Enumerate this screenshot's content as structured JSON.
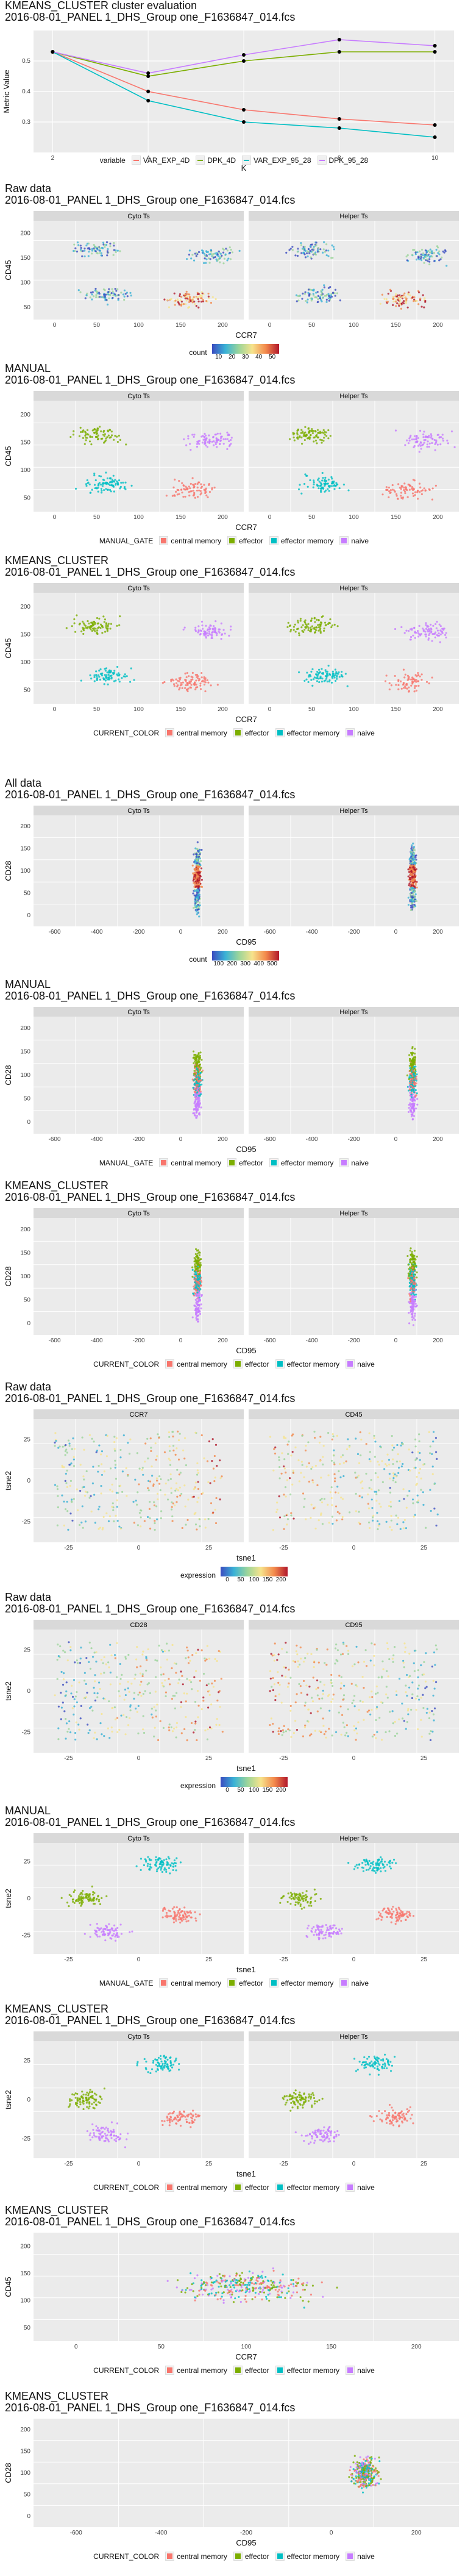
{
  "sections": [
    {
      "id": "kmeans-eval",
      "title": "KMEANS_CLUSTER cluster evaluation\n2016-08-01_PANEL 1_DHS_Group one_F1636847_014.fcs",
      "xlabel": "K",
      "ylabel": "Metric Value",
      "legend_title": "variable",
      "legend": [
        "VAR_EXP_4D",
        "DPK_4D",
        "VAR_EXP_95_28",
        "DPK_95_28"
      ],
      "legend_colors": [
        "#f8766d",
        "#7cae00",
        "#00bfc4",
        "#c77cff"
      ]
    },
    {
      "id": "raw-ccr7-cd45",
      "title": "Raw data\n2016-08-01_PANEL 1_DHS_Group one_F1636847_014.fcs",
      "panels": [
        "Cyto Ts",
        "Helper Ts"
      ],
      "xlabel": "CCR7",
      "ylabel": "CD45",
      "legend_title": "count",
      "cbar_ticks": [
        "10",
        "20",
        "30",
        "40",
        "50"
      ]
    },
    {
      "id": "manual-ccr7-cd45",
      "title": "MANUAL\n2016-08-01_PANEL 1_DHS_Group one_F1636847_014.fcs",
      "panels": [
        "Cyto Ts",
        "Helper Ts"
      ],
      "xlabel": "CCR7",
      "ylabel": "CD45",
      "legend_title": "MANUAL_GATE",
      "legend": [
        "central memory",
        "effector",
        "effector memory",
        "naive"
      ]
    },
    {
      "id": "kmeans-ccr7-cd45",
      "title": "KMEANS_CLUSTER\n2016-08-01_PANEL 1_DHS_Group one_F1636847_014.fcs",
      "panels": [
        "Cyto Ts",
        "Helper Ts"
      ],
      "xlabel": "CCR7",
      "ylabel": "CD45",
      "legend_title": "CURRENT_COLOR",
      "legend": [
        "central memory",
        "effector",
        "effector memory",
        "naive"
      ]
    },
    {
      "id": "all-cd95-cd28",
      "title": "All data\n2016-08-01_PANEL 1_DHS_Group one_F1636847_014.fcs",
      "panels": [
        "Cyto Ts",
        "Helper Ts"
      ],
      "xlabel": "CD95",
      "ylabel": "CD28",
      "legend_title": "count",
      "cbar_ticks": [
        "100",
        "200",
        "300",
        "400",
        "500"
      ]
    },
    {
      "id": "manual-cd95-cd28",
      "title": "MANUAL\n2016-08-01_PANEL 1_DHS_Group one_F1636847_014.fcs",
      "panels": [
        "Cyto Ts",
        "Helper Ts"
      ],
      "xlabel": "CD95",
      "ylabel": "CD28",
      "legend_title": "MANUAL_GATE",
      "legend": [
        "central memory",
        "effector",
        "effector memory",
        "naive"
      ]
    },
    {
      "id": "kmeans-cd95-cd28",
      "title": "KMEANS_CLUSTER\n2016-08-01_PANEL 1_DHS_Group one_F1636847_014.fcs",
      "panels": [
        "Cyto Ts",
        "Helper Ts"
      ],
      "xlabel": "CD95",
      "ylabel": "CD28",
      "legend_title": "CURRENT_COLOR",
      "legend": [
        "central memory",
        "effector",
        "effector memory",
        "naive"
      ]
    },
    {
      "id": "raw-tsne-ccr7-cd45",
      "title": "Raw data\n2016-08-01_PANEL 1_DHS_Group one_F1636847_014.fcs",
      "panels": [
        "CCR7",
        "CD45"
      ],
      "xlabel": "tsne1",
      "ylabel": "tsne2",
      "legend_title": "expression",
      "cbar_ticks": [
        "0",
        "50",
        "100",
        "150",
        "200"
      ]
    },
    {
      "id": "raw-tsne-cd28-cd95",
      "title": "Raw data\n2016-08-01_PANEL 1_DHS_Group one_F1636847_014.fcs",
      "panels": [
        "CD28",
        "CD95"
      ],
      "xlabel": "tsne1",
      "ylabel": "tsne2",
      "legend_title": "expression",
      "cbar_ticks": [
        "0",
        "50",
        "100",
        "150",
        "200"
      ]
    },
    {
      "id": "manual-tsne",
      "title": "MANUAL\n2016-08-01_PANEL 1_DHS_Group one_F1636847_014.fcs",
      "panels": [
        "Cyto Ts",
        "Helper Ts"
      ],
      "xlabel": "tsne1",
      "ylabel": "tsne2",
      "legend_title": "MANUAL_GATE",
      "legend": [
        "central memory",
        "effector",
        "effector memory",
        "naive"
      ]
    },
    {
      "id": "kmeans-tsne",
      "title": "KMEANS_CLUSTER\n2016-08-01_PANEL 1_DHS_Group one_F1636847_014.fcs",
      "panels": [
        "Cyto Ts",
        "Helper Ts"
      ],
      "xlabel": "tsne1",
      "ylabel": "tsne2",
      "legend_title": "CURRENT_COLOR",
      "legend": [
        "central memory",
        "effector",
        "effector memory",
        "naive"
      ]
    },
    {
      "id": "kmeans-hull-ccr7",
      "title": "KMEANS_CLUSTER\n2016-08-01_PANEL 1_DHS_Group one_F1636847_014.fcs",
      "xlabel": "CCR7",
      "ylabel": "CD45",
      "legend_title": "CURRENT_COLOR",
      "legend": [
        "central memory",
        "effector",
        "effector memory",
        "naive"
      ]
    },
    {
      "id": "kmeans-hull-cd95",
      "title": "KMEANS_CLUSTER\n2016-08-01_PANEL 1_DHS_Group one_F1636847_014.fcs",
      "xlabel": "CD95",
      "ylabel": "CD28",
      "legend_title": "CURRENT_COLOR",
      "legend": [
        "central memory",
        "effector",
        "effector memory",
        "naive"
      ]
    }
  ],
  "colors": {
    "central_memory": "#f8766d",
    "effector": "#7cae00",
    "effector_memory": "#00bfc4",
    "naive": "#c77cff",
    "panel_bg": "#ebebeb",
    "strip_bg": "#d9d9d9"
  },
  "chart_data": [
    {
      "type": "line",
      "title": "KMEANS_CLUSTER cluster evaluation",
      "xlabel": "K",
      "ylabel": "Metric Value",
      "x": [
        2,
        4,
        6,
        8,
        10
      ],
      "ylim": [
        0.2,
        0.6
      ],
      "yticks": [
        0.3,
        0.4,
        0.5
      ],
      "series": [
        {
          "name": "VAR_EXP_4D",
          "values": [
            0.53,
            0.4,
            0.34,
            0.31,
            0.29
          ]
        },
        {
          "name": "DPK_4D",
          "values": [
            0.53,
            0.45,
            0.5,
            0.53,
            0.53
          ]
        },
        {
          "name": "VAR_EXP_95_28",
          "values": [
            0.53,
            0.37,
            0.3,
            0.28,
            0.25
          ]
        },
        {
          "name": "DPK_95_28",
          "values": [
            0.53,
            0.46,
            0.52,
            0.57,
            0.55
          ]
        }
      ]
    },
    {
      "type": "heatmap",
      "title": "Raw data",
      "xlabel": "CCR7",
      "ylabel": "CD45",
      "facets": [
        "Cyto Ts",
        "Helper Ts"
      ],
      "xticks": [
        0,
        50,
        100,
        150,
        200
      ],
      "yticks": [
        50,
        100,
        150,
        200
      ],
      "legend": "count",
      "color_range": [
        10,
        50
      ]
    },
    {
      "type": "scatter",
      "title": "MANUAL",
      "xlabel": "CCR7",
      "ylabel": "CD45",
      "facets": [
        "Cyto Ts",
        "Helper Ts"
      ],
      "xticks": [
        0,
        50,
        100,
        150,
        200
      ],
      "yticks": [
        50,
        100,
        150,
        200
      ],
      "groups": [
        "central memory",
        "effector",
        "effector memory",
        "naive"
      ]
    },
    {
      "type": "scatter",
      "title": "KMEANS_CLUSTER",
      "xlabel": "CCR7",
      "ylabel": "CD45",
      "facets": [
        "Cyto Ts",
        "Helper Ts"
      ],
      "xticks": [
        0,
        50,
        100,
        150,
        200
      ],
      "yticks": [
        50,
        100,
        150,
        200
      ],
      "groups": [
        "central memory",
        "effector",
        "effector memory",
        "naive"
      ]
    },
    {
      "type": "heatmap",
      "title": "All data",
      "xlabel": "CD95",
      "ylabel": "CD28",
      "facets": [
        "Cyto Ts",
        "Helper Ts"
      ],
      "xticks": [
        -600,
        -400,
        -200,
        0,
        200
      ],
      "yticks": [
        0,
        50,
        100,
        150,
        200
      ],
      "legend": "count",
      "color_range": [
        100,
        500
      ]
    },
    {
      "type": "scatter",
      "title": "MANUAL",
      "xlabel": "CD95",
      "ylabel": "CD28",
      "facets": [
        "Cyto Ts",
        "Helper Ts"
      ],
      "xticks": [
        -600,
        -400,
        -200,
        0,
        200
      ],
      "yticks": [
        0,
        50,
        100,
        150,
        200
      ],
      "groups": [
        "central memory",
        "effector",
        "effector memory",
        "naive"
      ]
    },
    {
      "type": "scatter",
      "title": "KMEANS_CLUSTER",
      "xlabel": "CD95",
      "ylabel": "CD28",
      "facets": [
        "Cyto Ts",
        "Helper Ts"
      ],
      "xticks": [
        -600,
        -400,
        -200,
        0,
        200
      ],
      "yticks": [
        0,
        50,
        100,
        150,
        200
      ],
      "groups": [
        "central memory",
        "effector",
        "effector memory",
        "naive"
      ]
    },
    {
      "type": "scatter",
      "title": "Raw data",
      "xlabel": "tsne1",
      "ylabel": "tsne2",
      "facets": [
        "CCR7",
        "CD45"
      ],
      "xticks": [
        -25,
        0,
        25
      ],
      "yticks": [
        -25,
        0,
        25
      ],
      "legend": "expression",
      "color_range": [
        0,
        200
      ]
    },
    {
      "type": "scatter",
      "title": "Raw data",
      "xlabel": "tsne1",
      "ylabel": "tsne2",
      "facets": [
        "CD28",
        "CD95"
      ],
      "xticks": [
        -25,
        0,
        25
      ],
      "yticks": [
        -25,
        0,
        25
      ],
      "legend": "expression",
      "color_range": [
        0,
        200
      ]
    },
    {
      "type": "scatter",
      "title": "MANUAL",
      "xlabel": "tsne1",
      "ylabel": "tsne2",
      "facets": [
        "Cyto Ts",
        "Helper Ts"
      ],
      "xticks": [
        -25,
        0,
        25
      ],
      "yticks": [
        -25,
        0,
        25
      ],
      "groups": [
        "central memory",
        "effector",
        "effector memory",
        "naive"
      ]
    },
    {
      "type": "scatter",
      "title": "KMEANS_CLUSTER",
      "xlabel": "tsne1",
      "ylabel": "tsne2",
      "facets": [
        "Cyto Ts",
        "Helper Ts"
      ],
      "xticks": [
        -25,
        0,
        25
      ],
      "yticks": [
        -25,
        0,
        25
      ],
      "groups": [
        "central memory",
        "effector",
        "effector memory",
        "naive"
      ]
    },
    {
      "type": "scatter",
      "title": "KMEANS_CLUSTER",
      "xlabel": "CCR7",
      "ylabel": "CD45",
      "xticks": [
        0,
        50,
        100,
        150,
        200
      ],
      "yticks": [
        50,
        100,
        150,
        200
      ],
      "groups": [
        "central memory",
        "effector",
        "effector memory",
        "naive"
      ]
    },
    {
      "type": "scatter",
      "title": "KMEANS_CLUSTER",
      "xlabel": "CD95",
      "ylabel": "CD28",
      "xticks": [
        -600,
        -400,
        -200,
        0,
        200
      ],
      "yticks": [
        0,
        50,
        100,
        150,
        200
      ],
      "groups": [
        "central memory",
        "effector",
        "effector memory",
        "naive"
      ]
    }
  ]
}
